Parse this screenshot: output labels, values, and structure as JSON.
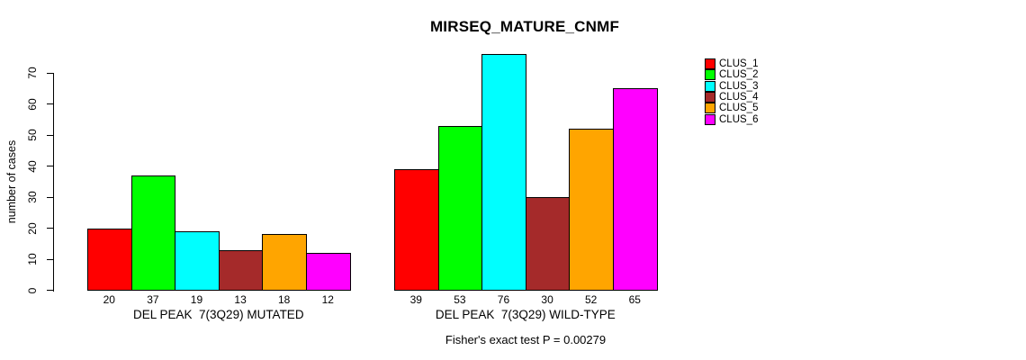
{
  "title": "MIRSEQ_MATURE_CNMF",
  "chart_data": {
    "type": "bar",
    "title": "MIRSEQ_MATURE_CNMF",
    "xlabel": "",
    "ylabel": "number of cases",
    "ylim": [
      0,
      70
    ],
    "yticks": [
      0,
      10,
      20,
      30,
      40,
      50,
      60,
      70
    ],
    "grid": false,
    "legend_position": "top-right",
    "categories": [
      "DEL PEAK  7(3Q29) MUTATED",
      "DEL PEAK  7(3Q29) WILD-TYPE"
    ],
    "series": [
      {
        "name": "CLUS_1",
        "color": "#FF0000",
        "values": [
          20,
          39
        ]
      },
      {
        "name": "CLUS_2",
        "color": "#00FF00",
        "values": [
          37,
          53
        ]
      },
      {
        "name": "CLUS_3",
        "color": "#00FFFF",
        "values": [
          19,
          76
        ]
      },
      {
        "name": "CLUS_4",
        "color": "#A52A2A",
        "values": [
          13,
          30
        ]
      },
      {
        "name": "CLUS_5",
        "color": "#FFA500",
        "values": [
          18,
          52
        ]
      },
      {
        "name": "CLUS_6",
        "color": "#FF00FF",
        "values": [
          12,
          65
        ]
      }
    ],
    "bar_value_labels": true,
    "annotation": "Fisher's exact test P = 0.00279"
  }
}
